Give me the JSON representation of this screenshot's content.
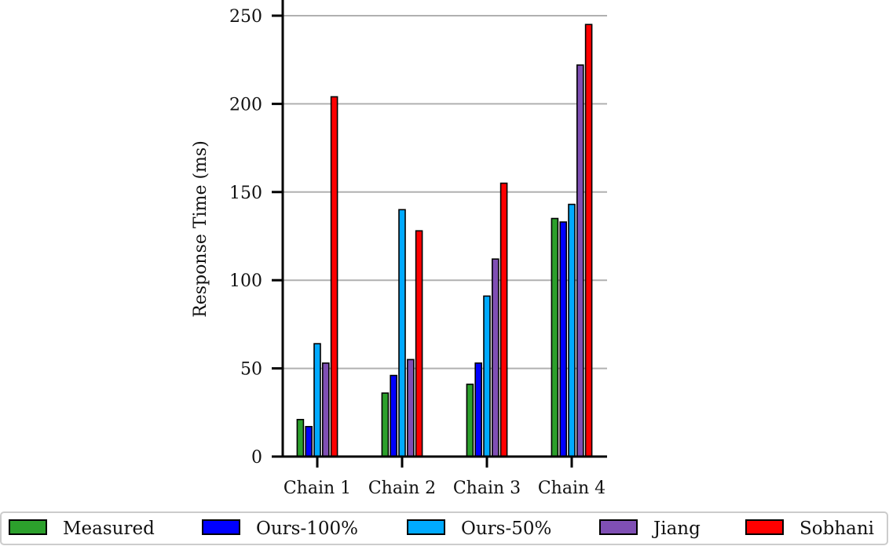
{
  "chart_data": {
    "type": "bar",
    "title": "",
    "xlabel": "",
    "ylabel": "Response Time (ms)",
    "ylim": [
      0,
      258
    ],
    "yticks": [
      0,
      50,
      100,
      150,
      200,
      250
    ],
    "grid": "horizontal",
    "legend_position": "bottom",
    "categories": [
      "Chain 1",
      "Chain 2",
      "Chain 3",
      "Chain 4"
    ],
    "series": [
      {
        "name": "Measured",
        "color": "#2ca02c",
        "values": [
          21,
          36,
          41,
          135
        ]
      },
      {
        "name": "Ours-100%",
        "color": "#0000ff",
        "values": [
          17,
          46,
          53,
          133
        ]
      },
      {
        "name": "Ours-50%",
        "color": "#00aaff",
        "values": [
          64,
          140,
          91,
          143
        ]
      },
      {
        "name": "Jiang",
        "color": "#7f4fb4",
        "values": [
          53,
          55,
          112,
          222
        ]
      },
      {
        "name": "Sobhani",
        "color": "#ff0000",
        "values": [
          204,
          128,
          155,
          245
        ]
      }
    ]
  }
}
